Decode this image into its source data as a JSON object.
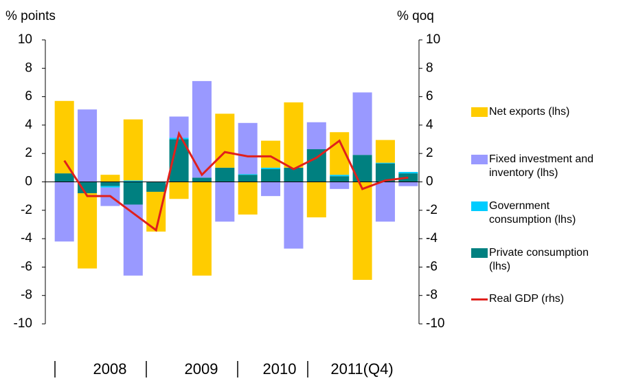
{
  "chart_data": {
    "type": "bar",
    "y_label": "% points",
    "y2_label": "% qoq",
    "x_labels": [
      "2008",
      "2009",
      "2010",
      "2011(Q4)"
    ],
    "ylim": [
      -10,
      10
    ],
    "yticks": [
      -10,
      -8,
      -6,
      -4,
      -2,
      0,
      2,
      4,
      6,
      8,
      10
    ],
    "y2lim": [
      -10,
      10
    ],
    "y2ticks": [
      -10,
      -8,
      -6,
      -4,
      -2,
      0,
      2,
      4,
      6,
      8,
      10
    ],
    "series": [
      {
        "name": "Net exports (lhs)",
        "color": "#ffcc00",
        "values": [
          5.1,
          -5.3,
          0.5,
          4.3,
          -2.8,
          -1.2,
          -6.6,
          3.8,
          -2.3,
          1.9,
          4.6,
          -2.5,
          3.0,
          -6.9,
          1.6,
          0
        ]
      },
      {
        "name": "Fixed investment and inventory (lhs)",
        "color": "#9999ff",
        "values": [
          -4.2,
          5.1,
          -1.3,
          -5.0,
          0,
          1.5,
          6.8,
          -2.8,
          3.6,
          -1.0,
          -4.7,
          1.9,
          -0.5,
          4.4,
          -2.8,
          -0.3
        ]
      },
      {
        "name": "Government consumption (lhs)",
        "color": "#00ccff",
        "values": [
          0,
          0,
          -0.1,
          0.1,
          0,
          0.1,
          0,
          0,
          0.05,
          0.1,
          0,
          0,
          0.1,
          0,
          0.05,
          0.1
        ]
      },
      {
        "name": "Private consumption (lhs)",
        "color": "#008080",
        "values": [
          0.6,
          -0.8,
          -0.3,
          -1.6,
          -0.7,
          3.0,
          0.3,
          1.0,
          0.5,
          0.9,
          1.0,
          2.3,
          0.4,
          1.9,
          1.3,
          0.6
        ]
      },
      {
        "name": "Real GDP (rhs)",
        "color": "#e0201c",
        "type": "line",
        "axis": "y2",
        "values": [
          1.5,
          -1.0,
          -1.0,
          -2.2,
          -3.4,
          3.4,
          0.5,
          2.1,
          1.8,
          1.8,
          0.9,
          1.7,
          2.9,
          -0.5,
          0.1,
          0.3
        ]
      }
    ]
  }
}
